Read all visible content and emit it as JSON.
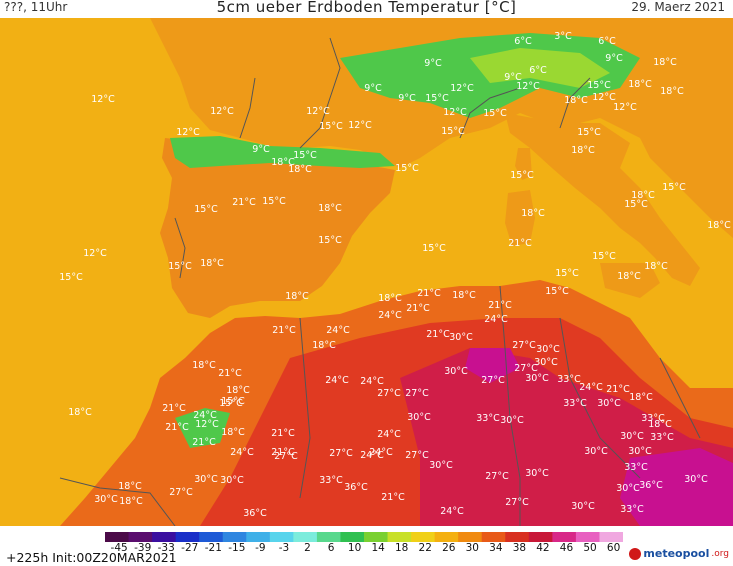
{
  "header": {
    "left": "???, 11Uhr",
    "title": "5cm ueber Erdboden Temperatur [°C]",
    "date": "29. Maerz 2021"
  },
  "footer": {
    "run": "+225h Init:00Z20MAR2021",
    "logo_text": "meteopool",
    "logo_suffix": ".org"
  },
  "colorbar": {
    "ticks": [
      "-45",
      "-39",
      "-33",
      "-27",
      "-21",
      "-15",
      "-9",
      "-3",
      "2",
      "6",
      "10",
      "14",
      "18",
      "22",
      "26",
      "30",
      "34",
      "38",
      "42",
      "46",
      "50",
      "60"
    ],
    "colors": [
      "#4b0a48",
      "#5a0d6e",
      "#3b0fa0",
      "#1a2fc8",
      "#1e5ad6",
      "#2f86e0",
      "#3fb0e8",
      "#58d4ec",
      "#7cecdc",
      "#58d88c",
      "#30c050",
      "#7ad030",
      "#c8e028",
      "#f0d018",
      "#f4b010",
      "#f08a10",
      "#e85a18",
      "#d83020",
      "#c81838",
      "#d82888",
      "#e860c0",
      "#f0a8e0"
    ]
  },
  "map_colors": {
    "sea": "#f2b014",
    "land_cool": "#ee9a18",
    "land_warm": "#ea6a1a",
    "land_hot": "#e03a22",
    "land_hotter": "#d01e48",
    "land_hottest": "#c81090",
    "alps_green": "#4fc84a",
    "alps_light": "#9ad832",
    "borders": "#555555"
  },
  "labels": [
    {
      "t": "12°C"
    },
    {
      "t": "12°C"
    },
    {
      "t": "12°C"
    },
    {
      "t": "12°C"
    },
    {
      "t": "12°C"
    },
    {
      "t": "15°C"
    },
    {
      "t": "12°C"
    },
    {
      "t": "9°C"
    },
    {
      "t": "9°C"
    },
    {
      "t": "12°C"
    },
    {
      "t": "9°C"
    },
    {
      "t": "9°C"
    },
    {
      "t": "15°C"
    },
    {
      "t": "12°C"
    },
    {
      "t": "6°C"
    },
    {
      "t": "3°C"
    },
    {
      "t": "6°C"
    },
    {
      "t": "9°C"
    },
    {
      "t": "6°C"
    },
    {
      "t": "9°C"
    },
    {
      "t": "12°C"
    },
    {
      "t": "18°C"
    },
    {
      "t": "15°C"
    },
    {
      "t": "18°C"
    },
    {
      "t": "12°C"
    },
    {
      "t": "15°C"
    },
    {
      "t": "12°C"
    },
    {
      "t": "18°C"
    },
    {
      "t": "18°C"
    },
    {
      "t": "15°C"
    },
    {
      "t": "15°C"
    },
    {
      "t": "18°C"
    },
    {
      "t": "15°C"
    },
    {
      "t": "18°C"
    },
    {
      "t": "15°C"
    },
    {
      "t": "18°C"
    },
    {
      "t": "15°C"
    },
    {
      "t": "18°C"
    },
    {
      "t": "21°C"
    },
    {
      "t": "15°C"
    },
    {
      "t": "21°C"
    },
    {
      "t": "15°C"
    },
    {
      "t": "18°C"
    },
    {
      "t": "15°C"
    },
    {
      "t": "18°C"
    },
    {
      "t": "15°C"
    },
    {
      "t": "15°C"
    },
    {
      "t": "18°C"
    },
    {
      "t": "15°C"
    },
    {
      "t": "15°C"
    },
    {
      "t": "15°C"
    },
    {
      "t": "18°C"
    },
    {
      "t": "18°C"
    },
    {
      "t": "18°C"
    },
    {
      "t": "15°C"
    },
    {
      "t": "18°C"
    },
    {
      "t": "15°C"
    },
    {
      "t": "18°C"
    },
    {
      "t": "21°C"
    },
    {
      "t": "15°C"
    },
    {
      "t": "18°C"
    },
    {
      "t": "24°C"
    },
    {
      "t": "21°C"
    },
    {
      "t": "18°C"
    },
    {
      "t": "21°C"
    },
    {
      "t": "24°C"
    },
    {
      "t": "21°C"
    },
    {
      "t": "24°C"
    },
    {
      "t": "21°C"
    },
    {
      "t": "18°C"
    },
    {
      "t": "24°C"
    },
    {
      "t": "21°C"
    },
    {
      "t": "24°C"
    },
    {
      "t": "30°C"
    },
    {
      "t": "27°C"
    },
    {
      "t": "30°C"
    },
    {
      "t": "18°C"
    },
    {
      "t": "21°C"
    },
    {
      "t": "21°C"
    },
    {
      "t": "24°C"
    },
    {
      "t": "27°C"
    },
    {
      "t": "30°C"
    },
    {
      "t": "27°C"
    },
    {
      "t": "27°C"
    },
    {
      "t": "30°C"
    },
    {
      "t": "33°C"
    },
    {
      "t": "24°C"
    },
    {
      "t": "21°C"
    },
    {
      "t": "18°C"
    },
    {
      "t": "18°C"
    },
    {
      "t": "21°C"
    },
    {
      "t": "24°C"
    },
    {
      "t": "15°C"
    },
    {
      "t": "12°C"
    },
    {
      "t": "21°C"
    },
    {
      "t": "18°C"
    },
    {
      "t": "21°C"
    },
    {
      "t": "27°C"
    },
    {
      "t": "30°C"
    },
    {
      "t": "33°C"
    },
    {
      "t": "30°C"
    },
    {
      "t": "33°C"
    },
    {
      "t": "30°C"
    },
    {
      "t": "30°C"
    },
    {
      "t": "33°C"
    },
    {
      "t": "33°C"
    },
    {
      "t": "24°C"
    },
    {
      "t": "27°C"
    },
    {
      "t": "27°C"
    },
    {
      "t": "24°C"
    },
    {
      "t": "24°C"
    },
    {
      "t": "27°C"
    },
    {
      "t": "30°C"
    },
    {
      "t": "27°C"
    },
    {
      "t": "30°C"
    },
    {
      "t": "30°C"
    },
    {
      "t": "30°C"
    },
    {
      "t": "18°C"
    },
    {
      "t": "27°C"
    },
    {
      "t": "30°C"
    },
    {
      "t": "30°C"
    },
    {
      "t": "33°C"
    },
    {
      "t": "36°C"
    },
    {
      "t": "21°C"
    },
    {
      "t": "24°C"
    },
    {
      "t": "27°C"
    },
    {
      "t": "30°C"
    },
    {
      "t": "33°C"
    },
    {
      "t": "30°C"
    },
    {
      "t": "30°C"
    },
    {
      "t": "33°C"
    },
    {
      "t": "36°C"
    },
    {
      "t": "30°C"
    },
    {
      "t": "36°C"
    },
    {
      "t": "30°C"
    },
    {
      "t": "18°C"
    },
    {
      "t": "18°C"
    },
    {
      "t": "15°C"
    }
  ]
}
